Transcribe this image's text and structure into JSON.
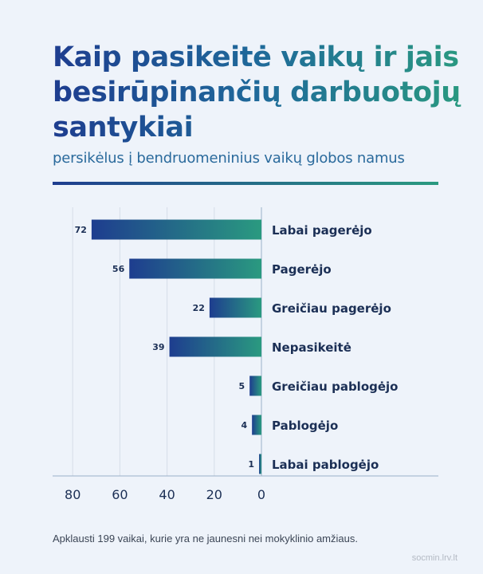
{
  "title": "Kaip pasikeitė vaikų ir jais besirūpinančių darbuotojų santykiai",
  "subtitle": "persikėlus į bendruomeninius vaikų globos namus",
  "footnote": "Apklausti 199 vaikai, kurie yra ne jaunesni nei mokyklinio amžiaus.",
  "credit": "socmin.lrv.lt",
  "colors": {
    "bar_start": "#1e3d8f",
    "bar_end": "#2a9a80",
    "label": "#1b2f55",
    "grid": "#d6dde8",
    "axis": "#9bb0c8"
  },
  "chart_data": {
    "type": "bar",
    "orientation": "horizontal",
    "x_direction": "reversed",
    "categories": [
      "Labai pagerėjo",
      "Pagerėjo",
      "Greičiau pagerėjo",
      "Nepasikeitė",
      "Greičiau pablogėjo",
      "Pablogėjo",
      "Labai pablogėjo"
    ],
    "values": [
      72,
      56,
      22,
      39,
      5,
      4,
      1
    ],
    "value_labels": [
      "72",
      "56",
      "22",
      "39",
      "5",
      "4",
      "1"
    ],
    "xlim": [
      0,
      80
    ],
    "xticks": [
      80,
      60,
      40,
      20,
      0
    ],
    "xtick_labels": [
      "80",
      "60",
      "40",
      "20",
      "0"
    ],
    "grid": true
  }
}
